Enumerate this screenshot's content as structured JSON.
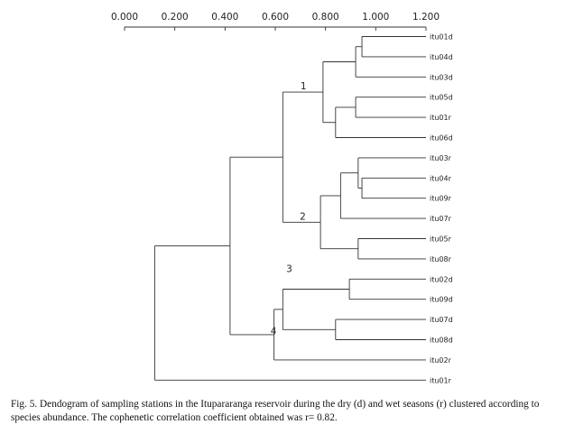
{
  "chart_data": {
    "type": "dendrogram",
    "axis": {
      "ticks": [
        0,
        0.2,
        0.4,
        0.6,
        0.8,
        1.0,
        1.2
      ],
      "tick_labels": [
        "0.000",
        "0.200",
        "0.400",
        "0.600",
        "0.800",
        "1.000",
        "1.200"
      ],
      "range": [
        0,
        1.2
      ],
      "position": "top"
    },
    "leaves": [
      "itu01d",
      "itu04d",
      "itu03d",
      "itu05d",
      "itu01r",
      "itu06d",
      "itu03r",
      "itu04r",
      "itu09r",
      "itu07r",
      "itu05r",
      "itu08r",
      "itu02d",
      "itu09d",
      "itu07d",
      "itu08d",
      "itu02r",
      "itu01r"
    ],
    "merges": [
      {
        "id": "m1",
        "children": [
          "itu01d",
          "itu04d"
        ],
        "height": 0.945
      },
      {
        "id": "m2",
        "children": [
          "m1",
          "itu03d"
        ],
        "height": 0.92
      },
      {
        "id": "m3",
        "children": [
          "itu05d",
          "itu01r"
        ],
        "height": 0.92
      },
      {
        "id": "m4",
        "children": [
          "m3",
          "itu06d"
        ],
        "height": 0.84
      },
      {
        "id": "m5",
        "children": [
          "m2",
          "m4"
        ],
        "height": 0.79
      },
      {
        "id": "m6",
        "children": [
          "itu04r",
          "itu09r"
        ],
        "height": 0.945
      },
      {
        "id": "m7",
        "children": [
          "itu03r",
          "m6"
        ],
        "height": 0.93
      },
      {
        "id": "m8",
        "children": [
          "m7",
          "itu07r"
        ],
        "height": 0.86
      },
      {
        "id": "m9",
        "children": [
          "itu05r",
          "itu08r"
        ],
        "height": 0.93
      },
      {
        "id": "m10",
        "children": [
          "m8",
          "m9"
        ],
        "height": 0.78
      },
      {
        "id": "m11",
        "children": [
          "m5",
          "m10"
        ],
        "height": 0.63
      },
      {
        "id": "m12",
        "children": [
          "itu02d",
          "itu09d"
        ],
        "height": 0.895
      },
      {
        "id": "m13",
        "children": [
          "itu07d",
          "itu08d"
        ],
        "height": 0.84
      },
      {
        "id": "m14",
        "children": [
          "m12",
          "m13"
        ],
        "height": 0.63
      },
      {
        "id": "m15",
        "children": [
          "m14",
          "itu02r"
        ],
        "height": 0.595
      },
      {
        "id": "m16",
        "children": [
          "m11",
          "m15"
        ],
        "height": 0.42
      },
      {
        "id": "m17",
        "children": [
          "m16",
          "itu01r"
        ],
        "height": 0.12
      }
    ],
    "cluster_labels": [
      {
        "text": "1",
        "node": "m5"
      },
      {
        "text": "2",
        "node": "m10"
      },
      {
        "text": "3",
        "node": "m12"
      },
      {
        "text": "4",
        "node": "m13"
      }
    ]
  },
  "caption": "Fig. 5. Dendogram of  sampling stations in the Itupararanga reservoir during the dry (d) and wet seasons (r) clustered according to species abundance. The cophenetic correlation coefficient obtained was r= 0.82."
}
